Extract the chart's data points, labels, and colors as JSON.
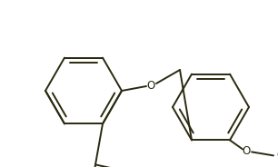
{
  "bg_color": "#ffffff",
  "line_color": "#2a2a10",
  "line_width": 1.4,
  "font_size": 8.5,
  "figsize": [
    3.06,
    1.84
  ],
  "dpi": 100
}
